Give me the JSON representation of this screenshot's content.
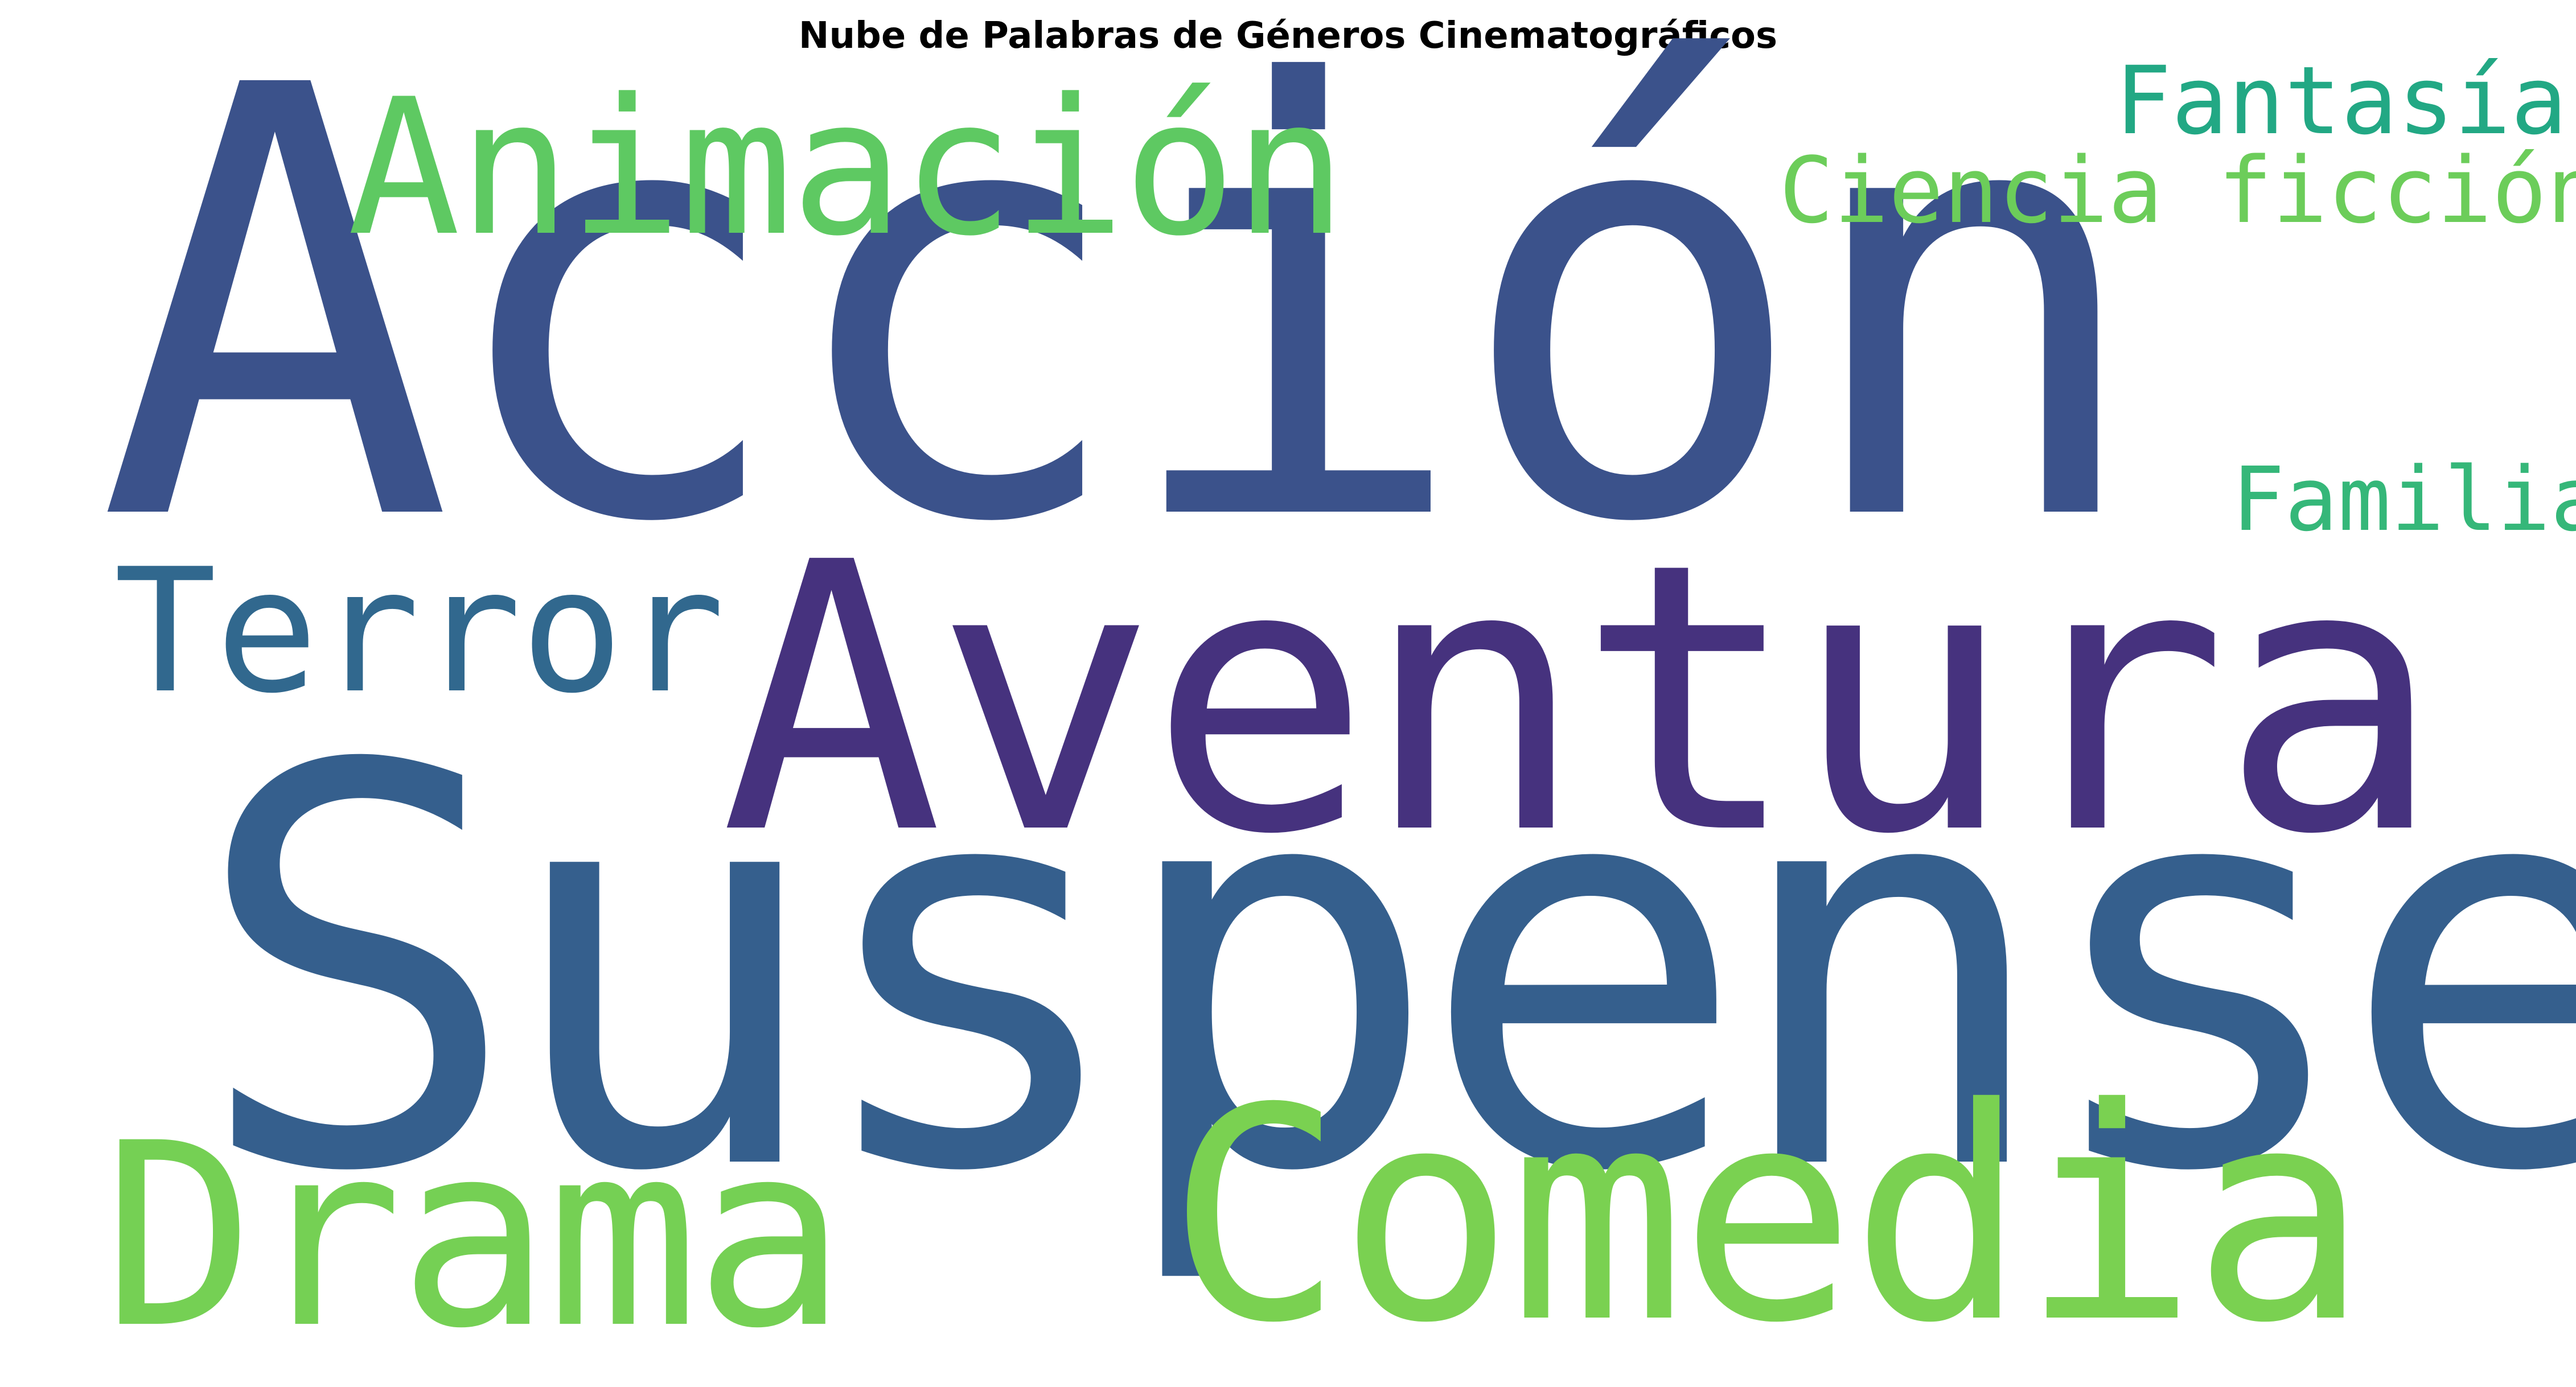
{
  "title": "Nube de Palabras de Géneros Cinematográficos",
  "words": {
    "accion": {
      "text": "Acción",
      "color": "#3b528b"
    },
    "suspense": {
      "text": "Suspense",
      "color": "#355f8d"
    },
    "aventura": {
      "text": "Aventura",
      "color": "#46327e"
    },
    "comedia": {
      "text": "Comedia",
      "color": "#7ad151"
    },
    "drama": {
      "text": "Drama",
      "color": "#75d054"
    },
    "animacion": {
      "text": "Animación",
      "color": "#5ec962"
    },
    "terror": {
      "text": "Terror",
      "color": "#31688e"
    },
    "fantasia": {
      "text": "Fantasía",
      "color": "#22a884"
    },
    "ciencia": {
      "text": "Ciencia ficción",
      "color": "#6ccd5a"
    },
    "familia": {
      "text": "Familia",
      "color": "#35b779"
    }
  }
}
